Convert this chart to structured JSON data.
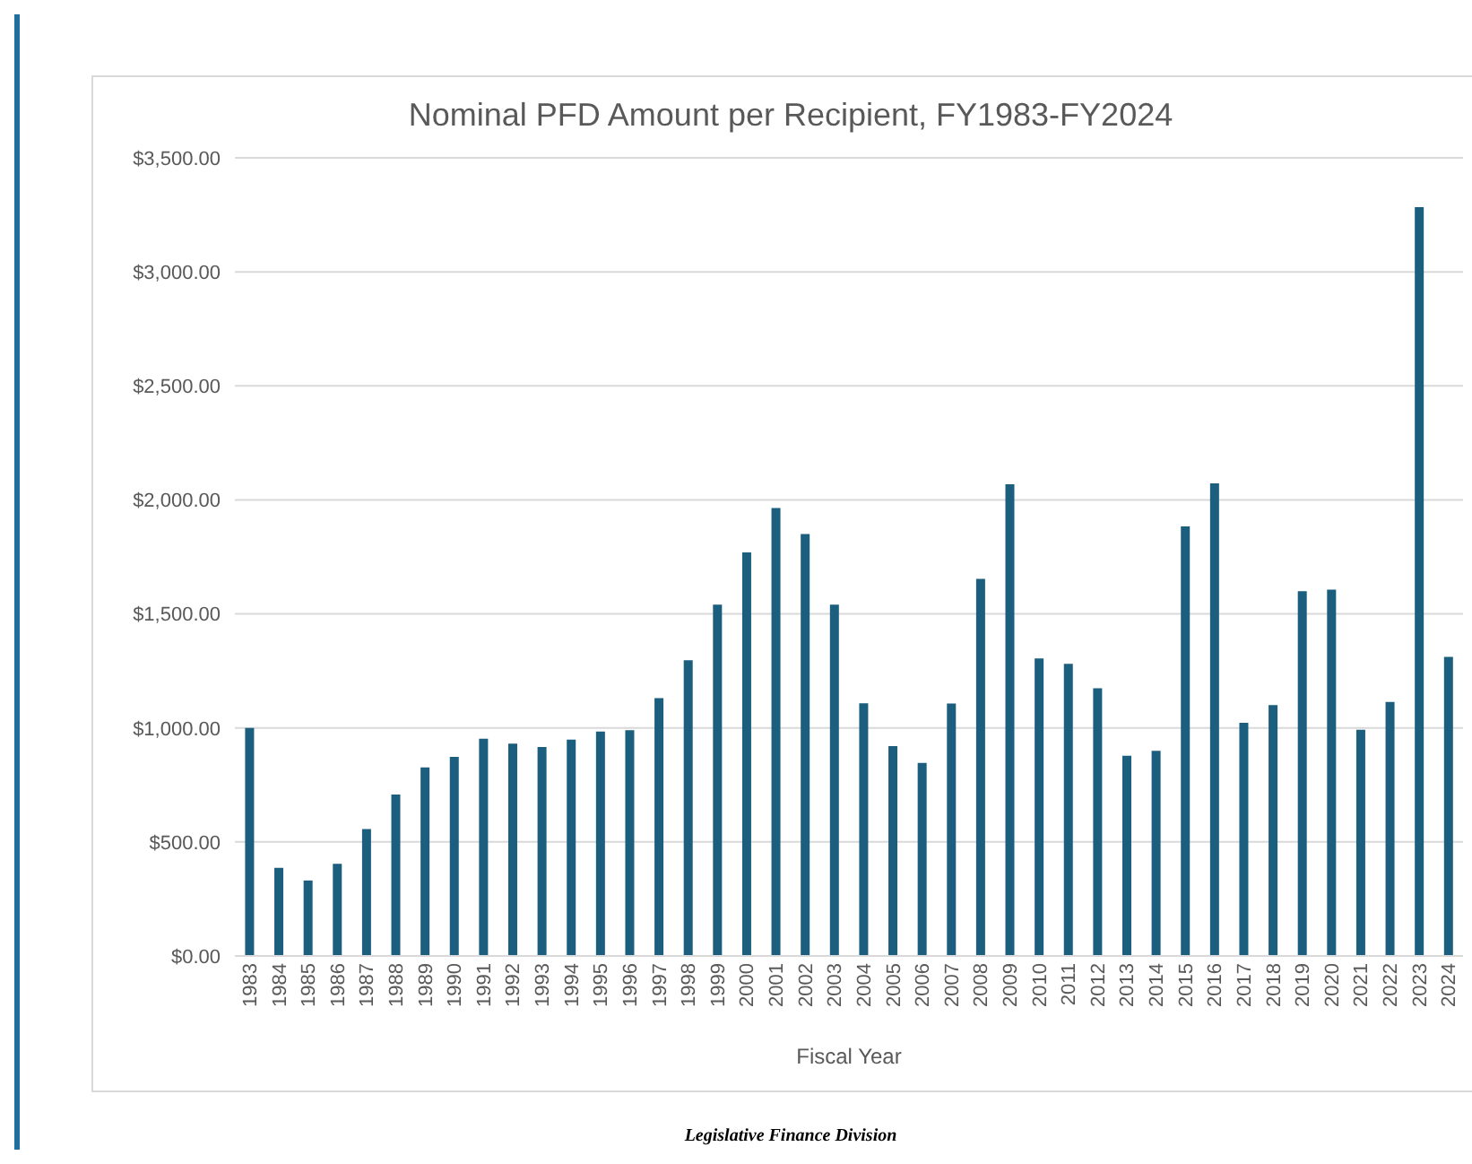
{
  "chart_data": {
    "type": "bar",
    "title": "Nominal PFD Amount per Recipient, FY1983-FY2024",
    "xlabel": "Fiscal Year",
    "categories": [
      "1983",
      "1984",
      "1985",
      "1986",
      "1987",
      "1988",
      "1989",
      "1990",
      "1991",
      "1992",
      "1993",
      "1994",
      "1995",
      "1996",
      "1997",
      "1998",
      "1999",
      "2000",
      "2001",
      "2002",
      "2003",
      "2004",
      "2005",
      "2006",
      "2007",
      "2008",
      "2009",
      "2010",
      "2011",
      "2012",
      "2013",
      "2014",
      "2015",
      "2016",
      "2017",
      "2018",
      "2019",
      "2020",
      "2021",
      "2022",
      "2023",
      "2024"
    ],
    "values": [
      1000,
      386,
      331,
      404,
      556,
      708,
      827,
      873,
      953,
      931,
      916,
      949,
      984,
      990,
      1131,
      1297,
      1541,
      1770,
      1964,
      1850,
      1541,
      1108,
      920,
      846,
      1107,
      1654,
      2069,
      1305,
      1281,
      1174,
      878,
      900,
      1884,
      2072,
      1022,
      1100,
      1600,
      1606,
      992,
      1114,
      3284,
      1312
    ],
    "color": "#1b5e7e",
    "ylim": [
      0,
      3500
    ],
    "yticks": [
      {
        "value": 0,
        "label": "$0.00"
      },
      {
        "value": 500,
        "label": "$500.00"
      },
      {
        "value": 1000,
        "label": "$1,000.00"
      },
      {
        "value": 1500,
        "label": "$1,500.00"
      },
      {
        "value": 2000,
        "label": "$2,000.00"
      },
      {
        "value": 2500,
        "label": "$2,500.00"
      },
      {
        "value": 3000,
        "label": "$3,000.00"
      },
      {
        "value": 3500,
        "label": "$3,500.00"
      }
    ],
    "grid": "y",
    "annotations": [
      "Legislative Finance Division"
    ]
  }
}
